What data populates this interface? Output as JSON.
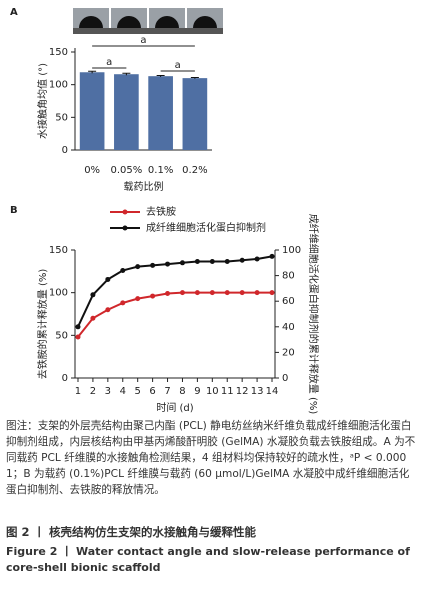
{
  "chart_data": [
    {
      "type": "bar",
      "panel": "A",
      "ylabel": "水接触角均值 (°)",
      "xlabel": "载药比例",
      "categories": [
        "0%",
        "0.05%",
        "0.1%",
        "0.2%"
      ],
      "values": [
        119,
        116,
        113,
        110
      ],
      "errors": [
        1.5,
        1.5,
        1,
        1
      ],
      "color": "#4f6fa3",
      "ylim": [
        0,
        150
      ],
      "yticks": [
        0,
        50,
        100,
        150
      ],
      "annotations": [
        "a",
        "a",
        "a"
      ]
    },
    {
      "type": "line",
      "panel": "B",
      "xlabel": "时间 (d)",
      "ylabel": "去铁胺的累计释放量 (%)",
      "y2label": "成纤维细胞活化蛋白抑制剂的累计释放量 (%)",
      "x": [
        1,
        2,
        3,
        4,
        5,
        6,
        7,
        8,
        9,
        10,
        11,
        12,
        13,
        14
      ],
      "xlim": [
        0.8,
        14.2
      ],
      "xticks": [
        1,
        2,
        3,
        4,
        5,
        6,
        7,
        8,
        9,
        10,
        11,
        12,
        13,
        14
      ],
      "ylim": [
        0,
        150
      ],
      "yticks": [
        0,
        50,
        100,
        150
      ],
      "y2lim": [
        0,
        100
      ],
      "y2ticks": [
        0,
        20,
        40,
        60,
        80,
        100
      ],
      "series": [
        {
          "name": "去铁胺",
          "color": "#d0272b",
          "values": [
            48,
            70,
            80,
            88,
            93,
            96,
            99,
            100,
            100,
            100,
            100,
            100,
            100,
            100
          ]
        },
        {
          "name": "成纤维细胞活化蛋白抑制剂",
          "color": "#111111",
          "axis": "y2",
          "values": [
            40,
            65,
            77,
            84,
            87,
            88,
            89,
            90,
            91,
            91,
            91,
            92,
            93,
            95
          ]
        }
      ]
    }
  ],
  "caption": {
    "body": "图注：支架的外层壳结构由聚己内酯 (PCL) 静电纺丝纳米纤维负载成纤维细胞活化蛋白抑制剂组成，内层核结构由甲基丙烯酸酐明胶 (GelMA) 水凝胶负载去铁胺组成。A 为不同载药 PCL 纤维膜的水接触角检测结果，4 组材料均保持较好的疏水性，ᵃP < 0.000 1；B 为载药 (0.1%)PCL 纤维膜与载药 (60 μmol/L)GelMA 水凝胶中成纤维细胞活化蛋白抑制剂、去铁胺的释放情况。",
    "title_cn": "图 2  丨  核壳结构仿生支架的水接触角与缓释性能",
    "title_en": "Figure 2  丨  Water contact angle and slow-release performance of core-shell bionic scaffold"
  }
}
